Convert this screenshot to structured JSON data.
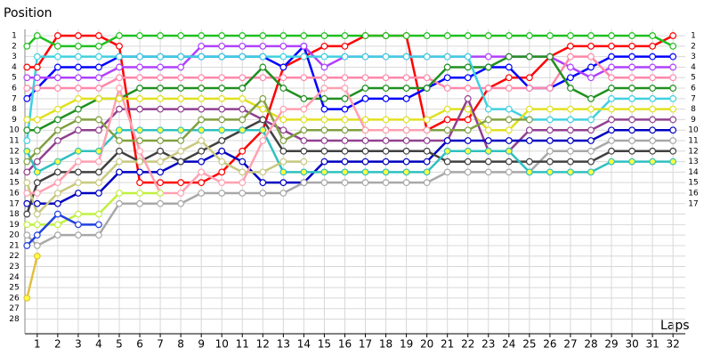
{
  "chart_data": {
    "type": "line",
    "ylabel": "Position",
    "xlabel": "Laps",
    "x": [
      0.5,
      1,
      2,
      3,
      4,
      5,
      6,
      7,
      8,
      9,
      10,
      11,
      12,
      13,
      14,
      15,
      16,
      17,
      18,
      19,
      20,
      21,
      22,
      23,
      24,
      25,
      26,
      27,
      28,
      29,
      30,
      31,
      32
    ],
    "xlim": [
      0.4,
      32.6
    ],
    "xticks": [
      1,
      2,
      3,
      4,
      5,
      6,
      7,
      8,
      9,
      10,
      11,
      12,
      13,
      14,
      15,
      16,
      17,
      18,
      19,
      20,
      21,
      22,
      23,
      24,
      25,
      26,
      27,
      28,
      29,
      30,
      31,
      32
    ],
    "ylim": [
      0.4,
      29.4
    ],
    "y_inverted": true,
    "yticks": [
      1,
      2,
      3,
      4,
      5,
      6,
      7,
      8,
      9,
      10,
      11,
      12,
      13,
      14,
      15,
      16,
      17,
      18,
      19,
      20,
      21,
      22,
      23,
      24,
      25,
      26,
      27,
      28
    ],
    "y_right_ticks": [
      1,
      2,
      3,
      4,
      5,
      6,
      7,
      8,
      9,
      10,
      11,
      12,
      13,
      14,
      15,
      16,
      17
    ],
    "grid": true,
    "series": [
      {
        "color": "#ff0000",
        "values": [
          4,
          4,
          1,
          1,
          1,
          2,
          15,
          15,
          15,
          15,
          14,
          12,
          10,
          4,
          3,
          2,
          2,
          1,
          1,
          1,
          10,
          9,
          9,
          6,
          5,
          5,
          3,
          2,
          2,
          2,
          2,
          2,
          1
        ]
      },
      {
        "color": "#20c020",
        "values": [
          2,
          1,
          2,
          2,
          2,
          1,
          1,
          1,
          1,
          1,
          1,
          1,
          1,
          1,
          1,
          1,
          1,
          1,
          1,
          1,
          1,
          1,
          1,
          1,
          1,
          1,
          1,
          1,
          1,
          1,
          1,
          1,
          2
        ]
      },
      {
        "color": "#0000ff",
        "values": [
          7,
          6,
          4,
          4,
          4,
          3,
          3,
          3,
          3,
          3,
          3,
          3,
          3,
          4,
          2,
          8,
          8,
          7,
          7,
          7,
          6,
          5,
          5,
          4,
          4,
          6,
          6,
          5,
          4,
          3,
          3,
          3,
          3
        ]
      },
      {
        "color": "#b040ff",
        "values": [
          5,
          5,
          5,
          5,
          5,
          4,
          4,
          4,
          4,
          2,
          2,
          2,
          2,
          2,
          2,
          4,
          3,
          3,
          3,
          3,
          3,
          3,
          3,
          3,
          3,
          3,
          3,
          4,
          5,
          4,
          4,
          4,
          4
        ]
      },
      {
        "color": "#ff88aa",
        "values": [
          6,
          6,
          6,
          6,
          6,
          5,
          5,
          5,
          5,
          5,
          5,
          5,
          5,
          5,
          5,
          5,
          5,
          5,
          5,
          5,
          5,
          6,
          6,
          6,
          6,
          6,
          6,
          3,
          3,
          5,
          5,
          5,
          5
        ]
      },
      {
        "color": "#209020",
        "values": [
          10,
          10,
          9,
          8,
          7,
          7,
          6,
          6,
          6,
          6,
          6,
          6,
          4,
          6,
          7,
          7,
          7,
          6,
          6,
          6,
          6,
          4,
          4,
          4,
          3,
          3,
          3,
          6,
          7,
          6,
          6,
          6,
          6
        ]
      },
      {
        "color": "#40d0e0",
        "values": [
          11,
          3,
          3,
          3,
          3,
          3,
          3,
          3,
          3,
          3,
          3,
          3,
          3,
          3,
          3,
          3,
          3,
          3,
          3,
          3,
          3,
          3,
          3,
          8,
          8,
          9,
          9,
          9,
          9,
          7,
          7,
          7,
          7
        ]
      },
      {
        "color": "#e0e020",
        "values": [
          9,
          9,
          8,
          7,
          7,
          7,
          7,
          7,
          7,
          7,
          7,
          7,
          8,
          9,
          9,
          9,
          9,
          9,
          9,
          9,
          9,
          8,
          8,
          10,
          10,
          8,
          8,
          8,
          8,
          8,
          8,
          8,
          8
        ]
      },
      {
        "color": "#904090",
        "values": [
          14,
          13,
          11,
          10,
          10,
          8,
          8,
          8,
          8,
          8,
          8,
          8,
          9,
          10,
          11,
          11,
          11,
          11,
          11,
          11,
          11,
          11,
          7,
          12,
          12,
          10,
          10,
          10,
          10,
          9,
          9,
          9,
          9
        ]
      },
      {
        "color": "#0000c0",
        "values": [
          17,
          17,
          17,
          16,
          16,
          14,
          14,
          14,
          13,
          13,
          12,
          13,
          15,
          15,
          15,
          13,
          13,
          13,
          13,
          13,
          13,
          11,
          11,
          11,
          11,
          11,
          11,
          11,
          11,
          10,
          10,
          10,
          10
        ]
      },
      {
        "color": "#a8a8a8",
        "values": [
          20,
          21,
          20,
          20,
          20,
          17,
          17,
          17,
          17,
          16,
          16,
          16,
          16,
          16,
          15,
          15,
          15,
          15,
          15,
          15,
          15,
          14,
          14,
          14,
          14,
          14,
          12,
          12,
          12,
          11,
          11,
          11,
          11
        ]
      },
      {
        "color": "#404040",
        "values": [
          18,
          15,
          14,
          14,
          14,
          12,
          13,
          12,
          13,
          12,
          11,
          10,
          9,
          12,
          12,
          12,
          12,
          12,
          12,
          12,
          12,
          13,
          13,
          13,
          13,
          13,
          13,
          13,
          13,
          12,
          12,
          12,
          12
        ]
      },
      {
        "color": "#30c0c0",
        "marker_fill": "#ffff40",
        "values": [
          12,
          14,
          13,
          12,
          12,
          10,
          10,
          10,
          10,
          10,
          10,
          10,
          10,
          14,
          14,
          14,
          14,
          14,
          14,
          14,
          14,
          12,
          12,
          12,
          12,
          14,
          14,
          14,
          14,
          13,
          13,
          13,
          13
        ]
      },
      {
        "color": "#80a040",
        "values": [
          13,
          12,
          10,
          9,
          9,
          11,
          11,
          11,
          11,
          9,
          9,
          9,
          7,
          11,
          10,
          10,
          10,
          10,
          10,
          10,
          10,
          10,
          10,
          9,
          9,
          9,
          null,
          null,
          null,
          null,
          null,
          null,
          null
        ]
      },
      {
        "color": "#c8c880",
        "values": [
          15,
          18,
          16,
          15,
          15,
          13,
          13,
          13,
          12,
          11,
          13,
          14,
          14,
          13,
          13,
          null,
          null,
          null,
          null,
          null,
          null,
          null,
          null,
          null,
          null,
          null,
          null,
          null,
          null,
          null,
          null,
          null,
          null
        ]
      },
      {
        "color": "#ffa0b0",
        "values": [
          16,
          16,
          15,
          13,
          13,
          6,
          12,
          16,
          16,
          14,
          15,
          15,
          11,
          8,
          8,
          6,
          6,
          10,
          10,
          10,
          10,
          null,
          null,
          null,
          null,
          null,
          null,
          null,
          null,
          null,
          null,
          null,
          null
        ]
      },
      {
        "color": "#c0f040",
        "values": [
          19,
          19,
          19,
          18,
          18,
          16,
          16,
          16,
          null,
          null,
          null,
          null,
          null,
          null,
          null,
          null,
          null,
          null,
          null,
          null,
          null,
          null,
          null,
          null,
          null,
          null,
          null,
          null,
          null,
          null,
          null,
          null,
          null
        ]
      },
      {
        "color": "#2040e0",
        "values": [
          21,
          20,
          18,
          19,
          19,
          null,
          null,
          null,
          null,
          null,
          null,
          null,
          null,
          null,
          null,
          null,
          null,
          null,
          null,
          null,
          null,
          null,
          null,
          null,
          null,
          null,
          null,
          null,
          null,
          null,
          null,
          null,
          null
        ]
      },
      {
        "color": "#e0c040",
        "marker_fill": "#ffff40",
        "values": [
          26,
          22,
          null,
          null,
          null,
          null,
          null,
          null,
          null,
          null,
          null,
          null,
          null,
          null,
          null,
          null,
          null,
          null,
          null,
          null,
          null,
          null,
          null,
          null,
          null,
          null,
          null,
          null,
          null,
          null,
          null,
          null,
          null
        ]
      }
    ]
  }
}
